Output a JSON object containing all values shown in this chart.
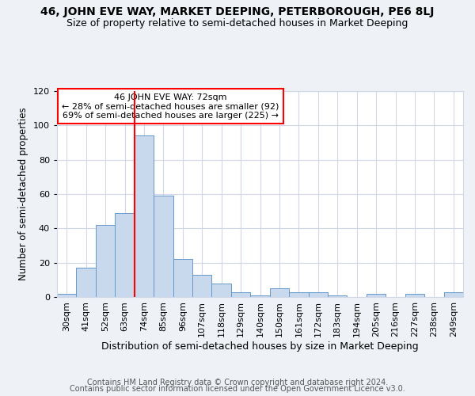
{
  "title1": "46, JOHN EVE WAY, MARKET DEEPING, PETERBOROUGH, PE6 8LJ",
  "title2": "Size of property relative to semi-detached houses in Market Deeping",
  "xlabel": "Distribution of semi-detached houses by size in Market Deeping",
  "ylabel": "Number of semi-detached properties",
  "categories": [
    "30sqm",
    "41sqm",
    "52sqm",
    "63sqm",
    "74sqm",
    "85sqm",
    "96sqm",
    "107sqm",
    "118sqm",
    "129sqm",
    "140sqm",
    "150sqm",
    "161sqm",
    "172sqm",
    "183sqm",
    "194sqm",
    "205sqm",
    "216sqm",
    "227sqm",
    "238sqm",
    "249sqm"
  ],
  "values": [
    2,
    17,
    42,
    49,
    94,
    59,
    22,
    13,
    8,
    3,
    1,
    5,
    3,
    3,
    1,
    0,
    2,
    0,
    2,
    0,
    3
  ],
  "bar_color": "#c9d9ed",
  "bar_edge_color": "#6699cc",
  "red_line_index": 4,
  "annotation_line1": "46 JOHN EVE WAY: 72sqm",
  "annotation_line2": "← 28% of semi-detached houses are smaller (92)",
  "annotation_line3": "69% of semi-detached houses are larger (225) →",
  "ylim": [
    0,
    120
  ],
  "yticks": [
    0,
    20,
    40,
    60,
    80,
    100,
    120
  ],
  "footnote1": "Contains HM Land Registry data © Crown copyright and database right 2024.",
  "footnote2": "Contains public sector information licensed under the Open Government Licence v3.0.",
  "bg_color": "#eef2f7",
  "plot_bg_color": "#ffffff",
  "grid_color": "#d0d8e8",
  "title1_fontsize": 10,
  "title2_fontsize": 9,
  "xlabel_fontsize": 9,
  "ylabel_fontsize": 8.5,
  "tick_fontsize": 8,
  "footnote_fontsize": 7
}
